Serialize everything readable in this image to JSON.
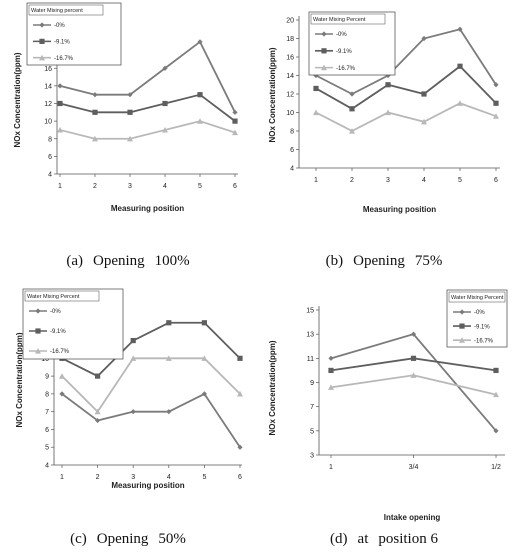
{
  "colors": {
    "s0": "#7b7b7b",
    "s1": "#5e5e5e",
    "s2": "#b8b8b8",
    "axis": "#555555",
    "text": "#222222"
  },
  "chart_data": [
    {
      "type": "line",
      "caption_label": "(a)",
      "caption_text": "Opening",
      "caption_value": "100%",
      "xlabel": "Measuring position",
      "ylabel": "NOx Concentration(ppm)",
      "legend_title": "Water Mixing percent",
      "categories": [
        "1",
        "2",
        "3",
        "4",
        "5",
        "6"
      ],
      "ylim": [
        4,
        20
      ],
      "yticks": [
        4,
        6,
        8,
        10,
        12,
        14,
        16,
        18,
        20
      ],
      "series": [
        {
          "name": "0%",
          "marker": "diamond",
          "values": [
            14,
            13,
            13,
            16,
            19,
            11
          ]
        },
        {
          "name": "9.1%",
          "marker": "square",
          "values": [
            12,
            11,
            11,
            12,
            13,
            10
          ]
        },
        {
          "name": "16.7%",
          "marker": "triangle",
          "values": [
            9,
            8,
            8,
            9,
            10,
            8.7
          ]
        }
      ]
    },
    {
      "type": "line",
      "caption_label": "(b)",
      "caption_text": "Opening",
      "caption_value": "75%",
      "xlabel": "Measuring position",
      "ylabel": "NOx Concentration(ppm)",
      "legend_title": "Water Mixing Percent",
      "categories": [
        "1",
        "2",
        "3",
        "4",
        "5",
        "6"
      ],
      "ylim": [
        4,
        20
      ],
      "yticks": [
        4,
        6,
        8,
        10,
        12,
        14,
        16,
        18,
        20
      ],
      "series": [
        {
          "name": "0%",
          "marker": "diamond",
          "values": [
            14,
            12,
            14,
            18,
            19,
            13
          ]
        },
        {
          "name": "9.1%",
          "marker": "square",
          "values": [
            12.6,
            10.4,
            13,
            12,
            15,
            11
          ]
        },
        {
          "name": "16.7%",
          "marker": "triangle",
          "values": [
            10,
            8,
            10,
            9,
            11,
            9.6
          ]
        }
      ]
    },
    {
      "type": "line",
      "caption_label": "(c)",
      "caption_text": "Opening",
      "caption_value": "50%",
      "xlabel": "Measuring position",
      "ylabel": "NOx Concentration(ppm)",
      "legend_title": "Water Mixing Percent",
      "categories": [
        "1",
        "2",
        "3",
        "4",
        "5",
        "6"
      ],
      "ylim": [
        4,
        13
      ],
      "yticks": [
        4,
        5,
        6,
        7,
        8,
        9,
        10,
        11,
        12,
        13
      ],
      "series": [
        {
          "name": "0%",
          "marker": "diamond",
          "values": [
            8,
            6.5,
            7,
            7,
            8,
            5
          ]
        },
        {
          "name": "9.1%",
          "marker": "square",
          "values": [
            10,
            9,
            11,
            12,
            12,
            10
          ]
        },
        {
          "name": "16.7%",
          "marker": "triangle",
          "values": [
            9,
            7,
            10,
            10,
            10,
            8
          ]
        }
      ]
    },
    {
      "type": "line",
      "caption_label": "(d)",
      "caption_text": "at",
      "caption_value": "position 6",
      "xlabel": "Intake opening",
      "ylabel": "NOx Concentration(ppm)",
      "legend_title": "Water Mixing Percent",
      "categories": [
        "1",
        "3/4",
        "1/2"
      ],
      "ylim": [
        3,
        15
      ],
      "yticks": [
        3,
        5,
        7,
        9,
        11,
        13,
        15
      ],
      "series": [
        {
          "name": "0%",
          "marker": "diamond",
          "values": [
            11,
            13,
            5
          ]
        },
        {
          "name": "9.1%",
          "marker": "square",
          "values": [
            10,
            11,
            10
          ]
        },
        {
          "name": "16.7%",
          "marker": "triangle",
          "values": [
            8.6,
            9.6,
            8
          ]
        }
      ]
    }
  ]
}
